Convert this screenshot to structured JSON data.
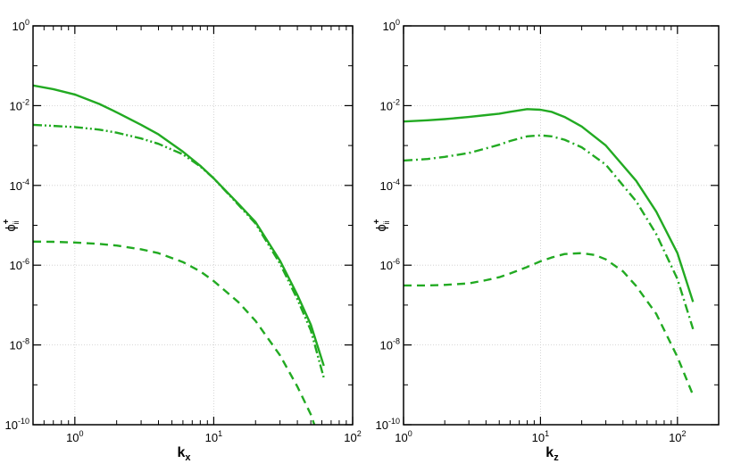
{
  "chart_data": [
    {
      "type": "line",
      "x_scale": "log",
      "y_scale": "log",
      "xlim": [
        0.5,
        100
      ],
      "ylim": [
        1e-10,
        1
      ],
      "xlabel": "k",
      "xlabel_sub": "x",
      "ylabel": "ϕ",
      "ylabel_sup": "+",
      "ylabel_sub": "ii",
      "x_ticks": [
        {
          "base": "10",
          "exp": "0",
          "value": 1
        },
        {
          "base": "10",
          "exp": "1",
          "value": 10
        },
        {
          "base": "10",
          "exp": "2",
          "value": 100
        }
      ],
      "y_ticks": [
        {
          "base": "10",
          "exp": "0",
          "value": 1
        },
        {
          "base": "10",
          "exp": "-2",
          "value": 0.01
        },
        {
          "base": "10",
          "exp": "-4",
          "value": 0.0001
        },
        {
          "base": "10",
          "exp": "-6",
          "value": 1e-06
        },
        {
          "base": "10",
          "exp": "-8",
          "value": 1e-08
        },
        {
          "base": "10",
          "exp": "-10",
          "value": 1e-10
        }
      ],
      "grid": true,
      "series": [
        {
          "style": "solid",
          "color": "#22aa22",
          "x": [
            0.5,
            0.7,
            1,
            1.5,
            2,
            3,
            4,
            6,
            8,
            10,
            15,
            20,
            30,
            40,
            50,
            62
          ],
          "y": [
            0.032,
            0.026,
            0.019,
            0.011,
            0.0068,
            0.0033,
            0.0019,
            0.0007,
            0.00031,
            0.00015,
            3.5e-05,
            1.2e-05,
            1.3e-06,
            1.8e-07,
            3.2e-08,
            3e-09
          ]
        },
        {
          "style": "dashdotdot",
          "color": "#22aa22",
          "x": [
            0.5,
            0.7,
            1,
            1.5,
            2,
            3,
            4,
            6,
            8,
            10,
            15,
            20,
            30,
            40,
            50,
            62
          ],
          "y": [
            0.0033,
            0.0031,
            0.0029,
            0.0025,
            0.0021,
            0.0015,
            0.0011,
            0.0006,
            0.0003,
            0.00015,
            3.3e-05,
            1.1e-05,
            1.1e-06,
            1.4e-07,
            2.3e-08,
            1.5e-09
          ]
        },
        {
          "style": "dashed",
          "color": "#22aa22",
          "x": [
            0.5,
            0.7,
            1,
            1.5,
            2,
            3,
            4,
            6,
            8,
            10,
            15,
            20,
            30,
            40,
            50,
            62
          ],
          "y": [
            3.9e-06,
            3.85e-06,
            3.7e-06,
            3.4e-06,
            3.1e-06,
            2.5e-06,
            2e-06,
            1.2e-06,
            7e-07,
            4e-07,
            1.2e-07,
            4e-08,
            5.5e-09,
            9e-10,
            1.8e-10,
            2e-11
          ]
        }
      ]
    },
    {
      "type": "line",
      "x_scale": "log",
      "y_scale": "log",
      "xlim": [
        1,
        200
      ],
      "ylim": [
        1e-10,
        1
      ],
      "xlabel": "k",
      "xlabel_sub": "z",
      "ylabel": "ϕ",
      "ylabel_sup": "+",
      "ylabel_sub": "ii",
      "x_ticks": [
        {
          "base": "10",
          "exp": "0",
          "value": 1
        },
        {
          "base": "10",
          "exp": "1",
          "value": 10
        },
        {
          "base": "10",
          "exp": "2",
          "value": 100
        }
      ],
      "y_ticks": [
        {
          "base": "10",
          "exp": "0",
          "value": 1
        },
        {
          "base": "10",
          "exp": "-2",
          "value": 0.01
        },
        {
          "base": "10",
          "exp": "-4",
          "value": 0.0001
        },
        {
          "base": "10",
          "exp": "-6",
          "value": 1e-06
        },
        {
          "base": "10",
          "exp": "-8",
          "value": 1e-08
        },
        {
          "base": "10",
          "exp": "-10",
          "value": 1e-10
        }
      ],
      "grid": true,
      "series": [
        {
          "style": "solid",
          "color": "#22aa22",
          "x": [
            1,
            1.5,
            2,
            3,
            4,
            5,
            6,
            8,
            10,
            12,
            15,
            20,
            30,
            50,
            70,
            100,
            130
          ],
          "y": [
            0.004,
            0.0043,
            0.0046,
            0.0052,
            0.0058,
            0.0063,
            0.007,
            0.0082,
            0.0079,
            0.007,
            0.0052,
            0.003,
            0.001,
            0.00013,
            2.2e-05,
            2e-06,
            1.2e-07
          ]
        },
        {
          "style": "dashdot",
          "color": "#22aa22",
          "x": [
            1,
            1.5,
            2,
            3,
            4,
            5,
            6,
            8,
            10,
            12,
            15,
            20,
            30,
            50,
            70,
            100,
            130
          ],
          "y": [
            0.00042,
            0.00046,
            0.00052,
            0.00065,
            0.00085,
            0.00105,
            0.0013,
            0.0017,
            0.0018,
            0.0017,
            0.0014,
            0.0009,
            0.00033,
            4e-05,
            6e-06,
            4.5e-07,
            2.5e-08
          ]
        },
        {
          "style": "dashed",
          "color": "#22aa22",
          "x": [
            1,
            1.5,
            2,
            3,
            4,
            5,
            6,
            8,
            10,
            12,
            15,
            20,
            25,
            30,
            40,
            50,
            70,
            100,
            130
          ],
          "y": [
            3.1e-07,
            3.1e-07,
            3.2e-07,
            3.5e-07,
            4.2e-07,
            5e-07,
            6.2e-07,
            9e-07,
            1.25e-06,
            1.55e-06,
            1.9e-06,
            2e-06,
            1.8e-06,
            1.4e-06,
            7e-07,
            3e-07,
            6e-08,
            5e-09,
            5.5e-10
          ]
        }
      ]
    }
  ]
}
